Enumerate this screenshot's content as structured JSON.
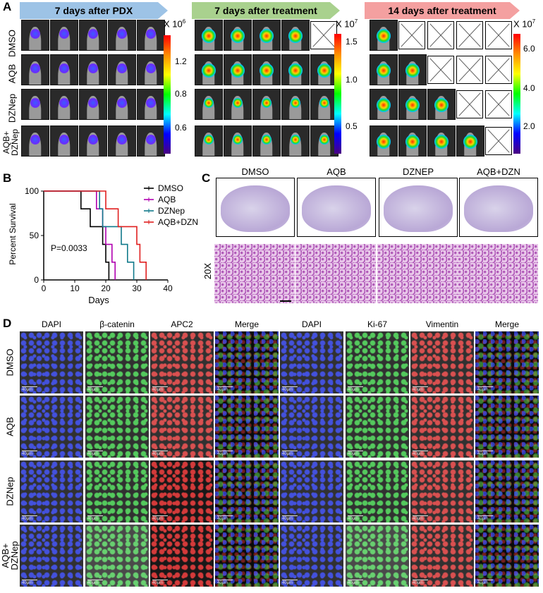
{
  "panel_a": {
    "label": "A",
    "headers": [
      "7 days after  PDX",
      "7 days after treatment",
      "14 days after treatment"
    ],
    "header_colors": [
      "#9dc3e6",
      "#a9d18e",
      "#f4a0a0"
    ],
    "row_labels": [
      "DMSO",
      "AQB",
      "DZNep",
      "AQB+\nDZNep"
    ],
    "scale1": {
      "exp_base": "X 10",
      "exp_pow": "6",
      "ticks": [
        "1.2",
        "0.8",
        "0.6"
      ]
    },
    "scale2": {
      "exp_base": "X 10",
      "exp_pow": "7",
      "ticks": [
        "1.5",
        "1.0",
        "0.5"
      ]
    },
    "scale3": {
      "exp_base": "X 10",
      "exp_pow": "7",
      "ticks": [
        "6.0",
        "4.0",
        "2.0"
      ]
    }
  },
  "panel_b": {
    "label": "B",
    "ylabel": "Percent Survival",
    "xlabel": "Days",
    "pvalue": "P=0.0033",
    "legend": [
      "DMSO",
      "AQB",
      "DZNep",
      "AQB+DZN"
    ]
  },
  "panel_c": {
    "label": "C",
    "groups": [
      "DMSO",
      "AQB",
      "DZNEP",
      "AQB+DZN"
    ],
    "mag_label": "20X"
  },
  "panel_d": {
    "label": "D",
    "cols_left": [
      "DAPI",
      "β-catenin",
      "APC2",
      "Merge"
    ],
    "cols_right": [
      "DAPI",
      "Ki-67",
      "Vimentin",
      "Merge"
    ],
    "row_labels": [
      "DMSO",
      "AQB",
      "DZNep",
      "AQB+\nDZNep"
    ],
    "scale_text": "40μm"
  },
  "chart_data": {
    "type": "line",
    "subtype": "kaplan-meier",
    "xlabel": "Days",
    "ylabel": "Percent Survival",
    "xlim": [
      0,
      40
    ],
    "ylim": [
      0,
      100
    ],
    "xticks": [
      0,
      10,
      20,
      30,
      40
    ],
    "yticks": [
      0,
      50,
      100
    ],
    "legend_position": "top-right",
    "series": [
      {
        "name": "DMSO",
        "color": "#000000",
        "x": [
          0,
          12,
          12,
          15,
          15,
          19,
          19,
          20,
          20,
          21,
          21
        ],
        "y": [
          100,
          100,
          80,
          80,
          60,
          60,
          40,
          40,
          20,
          20,
          0
        ]
      },
      {
        "name": "AQB",
        "color": "#b000b0",
        "x": [
          0,
          17,
          17,
          19,
          19,
          20,
          20,
          22,
          22,
          23,
          23
        ],
        "y": [
          100,
          100,
          80,
          80,
          60,
          60,
          40,
          40,
          20,
          20,
          0
        ]
      },
      {
        "name": "DZNep",
        "color": "#117a8b",
        "x": [
          0,
          18,
          18,
          19,
          19,
          25,
          25,
          27,
          27,
          29,
          29
        ],
        "y": [
          100,
          100,
          80,
          80,
          60,
          60,
          40,
          40,
          20,
          20,
          0
        ]
      },
      {
        "name": "AQB+DZN",
        "color": "#e02020",
        "x": [
          0,
          20,
          20,
          24,
          24,
          30,
          30,
          31,
          31,
          33,
          33
        ],
        "y": [
          100,
          100,
          80,
          80,
          60,
          60,
          40,
          40,
          20,
          20,
          0
        ]
      }
    ],
    "annotation": "P=0.0033"
  }
}
